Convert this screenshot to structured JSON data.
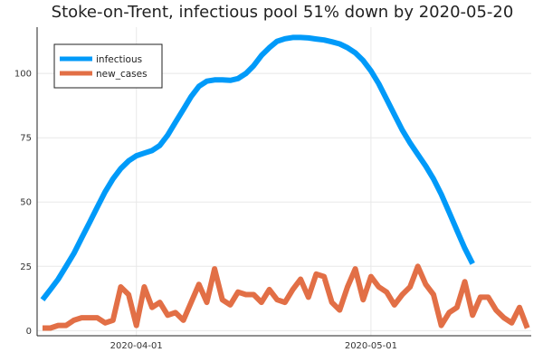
{
  "chart_data": {
    "type": "line",
    "title": "Stoke-on-Trent, infectious pool 51% down by 2020-05-20",
    "x_start": "2020-03-20",
    "x_ticks": [
      {
        "date": "2020-04-01",
        "label": "2020-04-01"
      },
      {
        "date": "2020-05-01",
        "label": "2020-05-01"
      }
    ],
    "y_ticks": [
      0,
      25,
      50,
      75,
      100
    ],
    "ylim": [
      -2,
      118
    ],
    "legend_position": "top-left",
    "grid": true,
    "series": [
      {
        "name": "infectious",
        "color": "#009af9",
        "values": [
          12,
          16,
          20,
          25,
          30,
          36,
          42,
          48,
          54,
          59,
          63,
          66,
          68,
          69,
          70,
          72,
          76,
          81,
          86,
          91,
          95,
          97,
          97.5,
          97.5,
          97.3,
          98,
          100,
          103,
          107,
          110,
          112.5,
          113.5,
          114,
          114,
          113.8,
          113.4,
          113,
          112.3,
          111.5,
          110,
          108,
          105,
          101,
          96,
          90,
          84,
          78,
          73,
          68.5,
          64,
          59,
          53,
          46,
          39,
          32,
          26
        ]
      },
      {
        "name": "new_cases",
        "color": "#e26f46",
        "values": [
          1,
          1,
          2,
          2,
          4,
          5,
          5,
          5,
          3,
          4,
          17,
          14,
          2,
          17,
          9,
          11,
          6,
          7,
          4,
          11,
          18,
          11,
          24,
          12,
          10,
          15,
          14,
          14,
          11,
          16,
          12,
          11,
          16,
          20,
          13,
          22,
          21,
          11,
          8,
          17,
          24,
          12,
          21,
          17,
          15,
          10,
          14,
          17,
          25,
          18,
          14,
          2,
          7,
          9,
          19,
          6,
          13,
          13,
          8,
          5,
          3,
          9,
          1
        ]
      }
    ]
  }
}
